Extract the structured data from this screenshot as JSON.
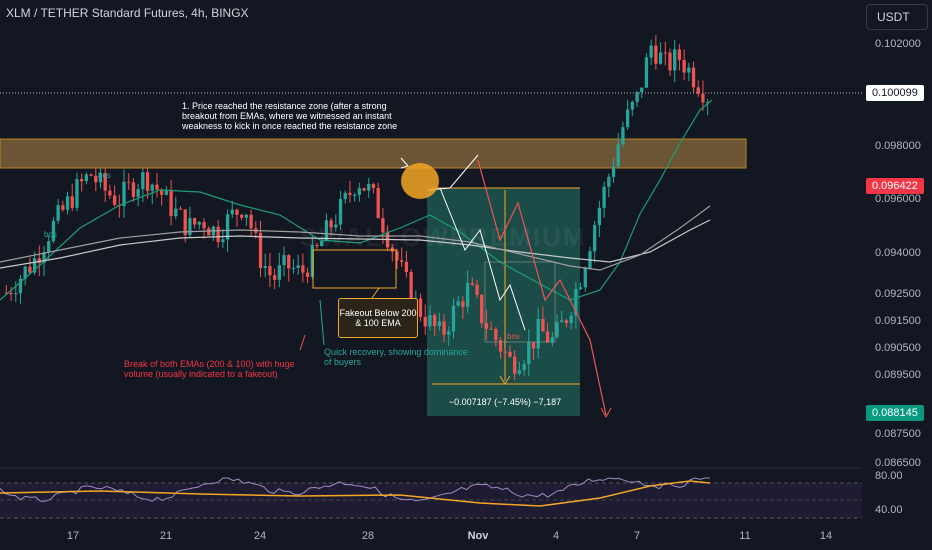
{
  "title": "XLM / TETHER Standard Futures, 4h, BINGX",
  "currency": "USDT",
  "watermark": "SWALLOWPREMIUM",
  "price_axis": {
    "ticks": [
      "0.102000",
      "0.098000",
      "0.096000",
      "0.094000",
      "0.092500",
      "0.091500",
      "0.090500",
      "0.089500",
      "0.087500",
      "0.086500"
    ],
    "current_price": "0.100099",
    "red_tag": "0.096422",
    "green_tag": "0.088145"
  },
  "time_axis": [
    "17",
    "21",
    "24",
    "28",
    "Nov",
    "4",
    "7",
    "11",
    "14"
  ],
  "rsi_axis": [
    "80.00",
    "40.00"
  ],
  "annotations": {
    "resistance_note": "1. Price reached the resistance zone (after a strong breakout from EMAs, where we witnessed an instant weakness to kick in once reached the resistance zone",
    "ema_break_note": "Break of both EMAs (200 & 100) with huge volume (usually indicated to a fakeout)",
    "recovery_note": "Quick recovery, showing dominance of buyers",
    "fakeout_box": "Fakeout Below 200 & 100 EMA",
    "measure": "−0.007187 (−7.45%) −7,187",
    "bos_labels": [
      "bos",
      "bos",
      "bos"
    ]
  },
  "colors": {
    "background": "#131722",
    "up": "#26a69a",
    "down": "#ef5350",
    "resistance_zone": "#f5a623",
    "measure_zone": "#1f5f55",
    "ema_green": "#1b9e77",
    "ema_white": "#c8c8c8",
    "rsi_line": "#9b8ec4",
    "rsi_ma": "#f5a623"
  },
  "chart_data": {
    "type": "candlestick",
    "title": "XLM / TETHER Standard Futures, 4h, BINGX",
    "y_range": [
      0.086,
      0.103
    ],
    "resistance_zone": [
      0.0978,
      0.0983
    ],
    "measure": {
      "from": 0.0964,
      "to": 0.0893,
      "change": -0.007187,
      "percent": -7.45
    },
    "rsi_levels": [
      80,
      40
    ],
    "close_path": [
      0.0928,
      0.0934,
      0.094,
      0.095,
      0.0958,
      0.0966,
      0.0972,
      0.0966,
      0.0962,
      0.0968,
      0.0971,
      0.0965,
      0.0958,
      0.0952,
      0.0955,
      0.095,
      0.0956,
      0.0961,
      0.0942,
      0.0933,
      0.0938,
      0.0935,
      0.0942,
      0.0952,
      0.096,
      0.097,
      0.0965,
      0.0952,
      0.0938,
      0.0925,
      0.0918,
      0.0912,
      0.0922,
      0.093,
      0.0918,
      0.091,
      0.0902,
      0.0906,
      0.0914,
      0.091,
      0.092,
      0.0935,
      0.0955,
      0.0972,
      0.099,
      0.1,
      0.102,
      0.1012,
      0.1015,
      0.1008,
      0.1001
    ]
  }
}
